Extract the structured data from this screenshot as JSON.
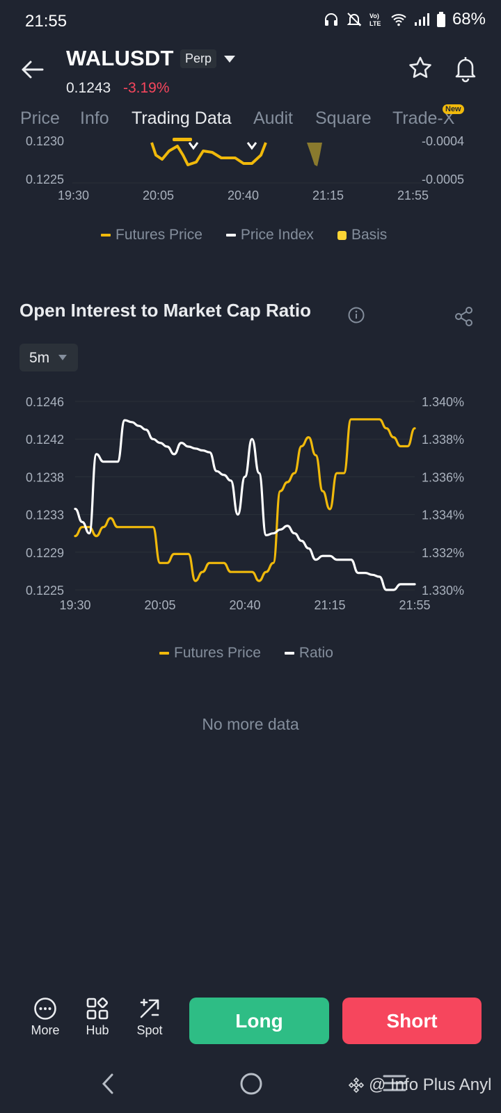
{
  "status": {
    "time": "21:55",
    "battery": "68%"
  },
  "header": {
    "symbol": "WALUSDT",
    "badge": "Perp",
    "last_price": "0.1243",
    "change": "-3.19%"
  },
  "tabs": [
    {
      "label": "Price"
    },
    {
      "label": "Info"
    },
    {
      "label": "Trading Data"
    },
    {
      "label": "Audit"
    },
    {
      "label": "Square"
    },
    {
      "label": "Trade-X"
    }
  ],
  "new_badge": "New",
  "basis_chart": {
    "left_ticks": [
      "0.1230",
      "0.1225"
    ],
    "right_ticks": [
      "-0.0004",
      "-0.0005"
    ],
    "x_ticks": [
      "19:30",
      "20:05",
      "20:40",
      "21:15",
      "21:55"
    ],
    "legend": [
      {
        "name": "Futures Price",
        "color": "#f0b90b"
      },
      {
        "name": "Price Index",
        "color": "#ffffff"
      },
      {
        "name": "Basis",
        "color": "#fcd535"
      }
    ]
  },
  "oi_section": {
    "title": "Open Interest to Market Cap Ratio",
    "interval": "5m"
  },
  "chart_data": {
    "type": "line",
    "title": "Open Interest to Market Cap Ratio",
    "x_ticks": [
      "19:30",
      "20:05",
      "20:40",
      "21:15",
      "21:55"
    ],
    "y_left_ticks": [
      "0.1246",
      "0.1242",
      "0.1238",
      "0.1233",
      "0.1229",
      "0.1225"
    ],
    "y_right_ticks": [
      "1.340%",
      "1.338%",
      "1.336%",
      "1.334%",
      "1.332%",
      "1.330%"
    ],
    "ylim_left": [
      0.1225,
      0.1246
    ],
    "ylim_right": [
      1.33,
      1.34
    ],
    "grid": true,
    "legend_position": "bottom",
    "series": [
      {
        "name": "Futures Price",
        "axis": "left",
        "color": "#f0b90b",
        "values": [
          0.1231,
          0.1232,
          0.1232,
          0.1231,
          0.1232,
          0.1233,
          0.1232,
          0.1232,
          0.1232,
          0.1232,
          0.1232,
          0.1232,
          0.1228,
          0.1228,
          0.1229,
          0.1229,
          0.1229,
          0.1226,
          0.1227,
          0.1228,
          0.1228,
          0.1228,
          0.1227,
          0.1227,
          0.1227,
          0.1227,
          0.1226,
          0.1227,
          0.1228,
          0.1236,
          0.1237,
          0.1238,
          0.1241,
          0.1242,
          0.124,
          0.1236,
          0.1234,
          0.1238,
          0.1238,
          0.1244,
          0.1244,
          0.1244,
          0.1244,
          0.1244,
          0.1243,
          0.1242,
          0.1241,
          0.1241,
          0.1243
        ]
      },
      {
        "name": "Ratio",
        "axis": "right",
        "color": "#ffffff",
        "values": [
          1.3343,
          1.3336,
          1.333,
          1.3372,
          1.3368,
          1.3368,
          1.3368,
          1.339,
          1.3389,
          1.3387,
          1.3385,
          1.338,
          1.3378,
          1.3376,
          1.3372,
          1.3378,
          1.3376,
          1.3375,
          1.3374,
          1.3373,
          1.3363,
          1.3361,
          1.3358,
          1.334,
          1.336,
          1.338,
          1.3362,
          1.3329,
          1.333,
          1.3332,
          1.3334,
          1.333,
          1.3326,
          1.3322,
          1.3316,
          1.3318,
          1.3318,
          1.3316,
          1.3316,
          1.3316,
          1.3309,
          1.3309,
          1.3308,
          1.3307,
          1.33,
          1.33,
          1.3303,
          1.3303,
          1.3303
        ]
      }
    ]
  },
  "oi_legend": [
    {
      "name": "Futures Price",
      "color": "#f0b90b"
    },
    {
      "name": "Ratio",
      "color": "#ffffff"
    }
  ],
  "no_more": "No more data",
  "bottom_bar": {
    "tools": [
      {
        "label": "More",
        "icon": "more-circle-icon"
      },
      {
        "label": "Hub",
        "icon": "grid-hub-icon"
      },
      {
        "label": "Spot",
        "icon": "spot-arrow-icon"
      }
    ],
    "long": "Long",
    "short": "Short"
  },
  "watermark": "@ Info Plus Anyl"
}
